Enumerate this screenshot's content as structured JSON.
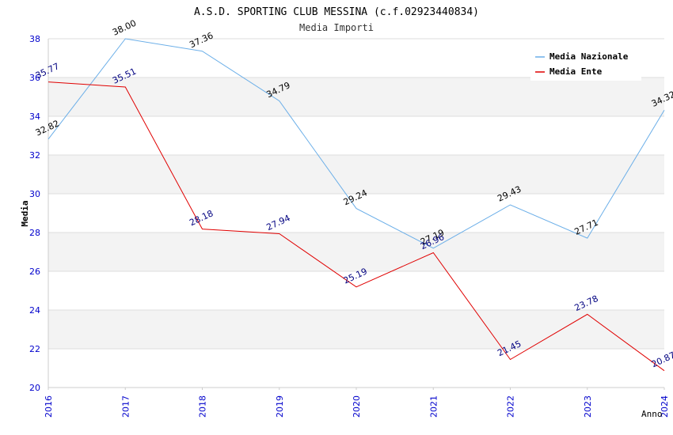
{
  "chart_data": {
    "type": "line",
    "title": "A.S.D. SPORTING CLUB MESSINA (c.f.02923440834)",
    "subtitle": "Media Importi",
    "xlabel": "Anno",
    "ylabel": "Media",
    "x": [
      "2016",
      "2017",
      "2018",
      "2019",
      "2020",
      "2021",
      "2022",
      "2023",
      "2024"
    ],
    "ylim": [
      20,
      38
    ],
    "yticks": [
      "20",
      "22",
      "24",
      "26",
      "28",
      "30",
      "32",
      "34",
      "36",
      "38"
    ],
    "grid": true,
    "legend_position": "top-right",
    "series": [
      {
        "name": "Media Nazionale",
        "color": "#6aaee8",
        "label_color": "#000000",
        "values": [
          32.82,
          38.0,
          37.36,
          34.79,
          29.24,
          27.19,
          29.43,
          27.71,
          34.32
        ],
        "labels": [
          "32.82",
          "38.00",
          "37.36",
          "34.79",
          "29.24",
          "27.19",
          "29.43",
          "27.71",
          "34.32"
        ]
      },
      {
        "name": "Media Ente",
        "color": "#e00000",
        "label_color": "#000080",
        "values": [
          35.77,
          35.51,
          28.18,
          27.94,
          25.19,
          26.96,
          21.45,
          23.78,
          20.87
        ],
        "labels": [
          "35.77",
          "35.51",
          "28.18",
          "27.94",
          "25.19",
          "26.96",
          "21.45",
          "23.78",
          "20.87"
        ]
      }
    ],
    "band_color": "#f3f3f3",
    "grid_color": "#dddddd",
    "tick_color": "#0000cc"
  }
}
